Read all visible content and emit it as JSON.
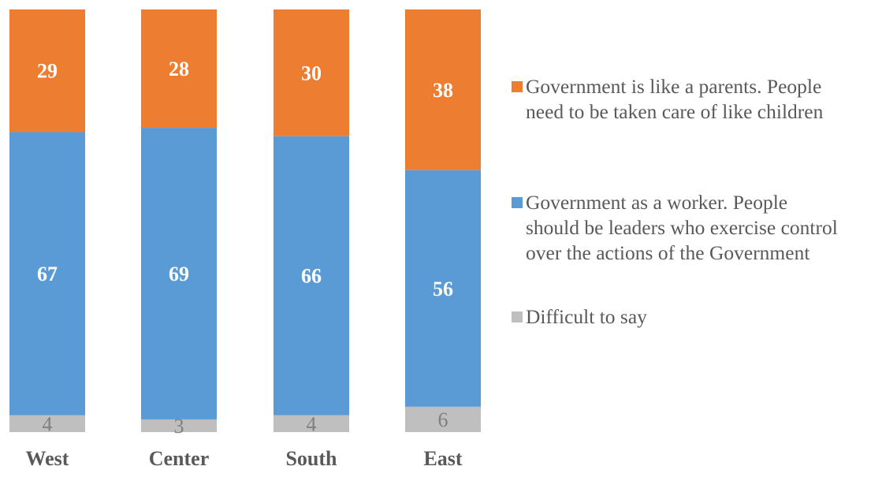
{
  "chart_data": {
    "type": "bar",
    "stacked": true,
    "orientation": "vertical",
    "title": "",
    "xlabel": "",
    "ylabel": "",
    "ylim": [
      0,
      100
    ],
    "grid": false,
    "legend_position": "right",
    "categories": [
      "West",
      "Center",
      "South",
      "East"
    ],
    "series": [
      {
        "name": "Difficult to say",
        "color": "#BFBFBF",
        "values": [
          4,
          3,
          4,
          6
        ]
      },
      {
        "name": "Government as a worker. People should be leaders who exercise control over the actions of the Government",
        "color": "#5B9BD5",
        "values": [
          67,
          69,
          66,
          56
        ]
      },
      {
        "name": "Government is like a parents. People need to be taken care of like children",
        "color": "#ED7D31",
        "values": [
          29,
          28,
          30,
          38
        ]
      }
    ]
  },
  "legend": {
    "items": [
      {
        "lines": [
          "Government is like a parents. People",
          "need to be taken care of like children"
        ],
        "color": "#ED7D31"
      },
      {
        "lines": [
          "Government as a worker. People",
          "should be leaders who exercise control",
          "over the actions of the Government"
        ],
        "color": "#5B9BD5"
      },
      {
        "lines": [
          "Difficult to say"
        ],
        "color": "#BFBFBF"
      }
    ]
  }
}
